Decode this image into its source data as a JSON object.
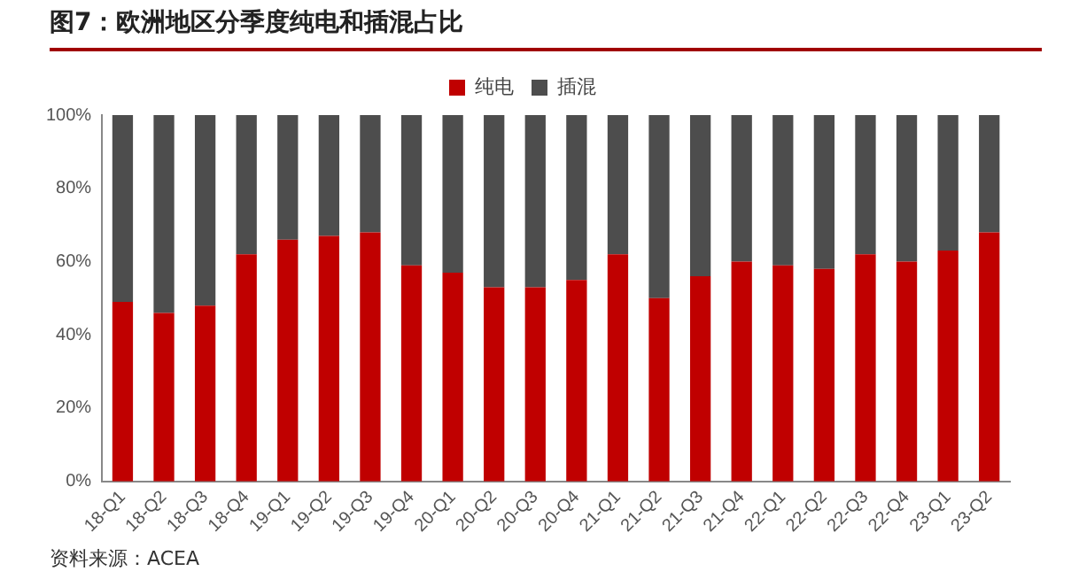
{
  "chart_data": {
    "type": "bar",
    "title": "图7：欧洲地区分季度纯电和插混占比",
    "stacked": true,
    "categories": [
      "18-Q1",
      "18-Q2",
      "18-Q3",
      "18-Q4",
      "19-Q1",
      "19-Q2",
      "19-Q3",
      "19-Q4",
      "20-Q1",
      "20-Q2",
      "20-Q3",
      "20-Q4",
      "21-Q1",
      "21-Q2",
      "21-Q3",
      "21-Q4",
      "22-Q1",
      "22-Q2",
      "22-Q3",
      "22-Q4",
      "23-Q1",
      "23-Q2"
    ],
    "series": [
      {
        "name": "纯电",
        "color": "#c00000",
        "values": [
          49,
          46,
          48,
          62,
          66,
          67,
          68,
          59,
          57,
          53,
          53,
          55,
          62,
          50,
          56,
          60,
          59,
          58,
          62,
          60,
          63,
          68
        ]
      },
      {
        "name": "插混",
        "color": "#4d4d4d",
        "values": [
          51,
          54,
          52,
          38,
          34,
          33,
          32,
          41,
          43,
          47,
          47,
          45,
          38,
          50,
          44,
          40,
          41,
          42,
          38,
          40,
          37,
          32
        ]
      }
    ],
    "ylim": [
      0,
      100
    ],
    "yticks": [
      {
        "value": 0,
        "label": "0%"
      },
      {
        "value": 20,
        "label": "20%"
      },
      {
        "value": 40,
        "label": "40%"
      },
      {
        "value": 60,
        "label": "60%"
      },
      {
        "value": 80,
        "label": "80%"
      },
      {
        "value": 100,
        "label": "100%"
      }
    ],
    "grid": false,
    "legend": "top",
    "annotations": [
      "资料来源：ACEA"
    ]
  }
}
